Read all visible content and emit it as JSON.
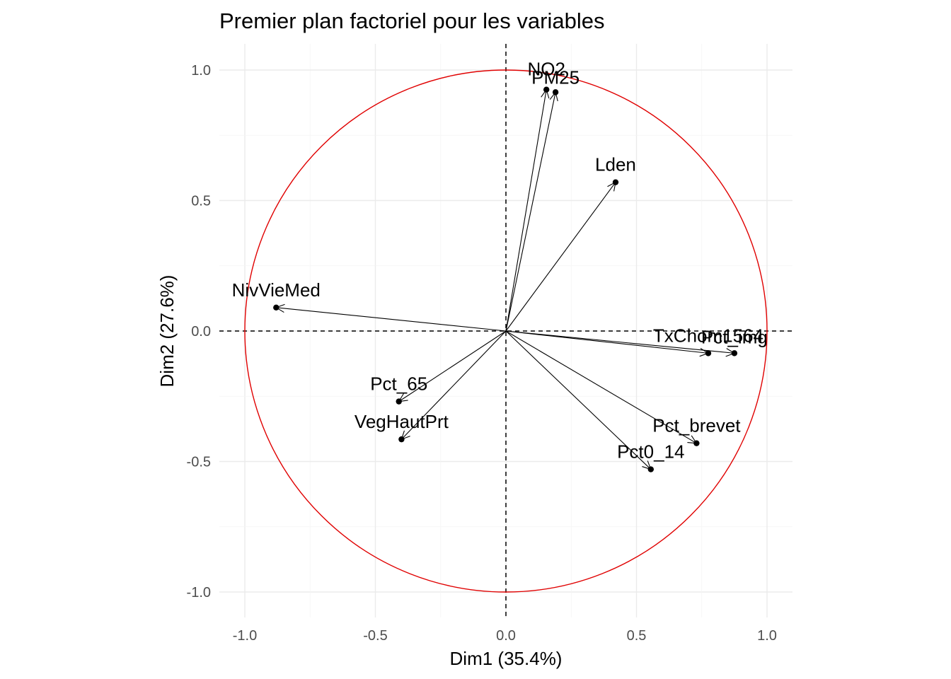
{
  "chart_data": {
    "type": "scatter",
    "subtype": "pca-correlation-circle",
    "title": "Premier plan factoriel pour les variables",
    "xlabel": "Dim1 (35.4%)",
    "ylabel": "Dim2 (27.6%)",
    "xlim": [
      -1.1,
      1.1
    ],
    "ylim": [
      -1.1,
      1.1
    ],
    "xticks": [
      -1.0,
      -0.5,
      0.0,
      0.5,
      1.0
    ],
    "xtick_labels": [
      "-1.0",
      "-0.5",
      "0.0",
      "0.5",
      "1.0"
    ],
    "yticks": [
      -1.0,
      -0.5,
      0.0,
      0.5,
      1.0
    ],
    "ytick_labels": [
      "-1.0",
      "-0.5",
      "0.0",
      "0.5",
      "1.0"
    ],
    "grid": true,
    "unit_circle": true,
    "circle_color": "#e00000",
    "arrow_color": "#000000",
    "variables": [
      {
        "name": "NO2",
        "x": 0.155,
        "y": 0.925
      },
      {
        "name": "PM25",
        "x": 0.19,
        "y": 0.915
      },
      {
        "name": "Lden",
        "x": 0.42,
        "y": 0.57
      },
      {
        "name": "NivVieMed",
        "x": -0.88,
        "y": 0.09
      },
      {
        "name": "TxChom1564",
        "x": 0.775,
        "y": -0.085
      },
      {
        "name": "Pct_img",
        "x": 0.875,
        "y": -0.085
      },
      {
        "name": "Pct_65",
        "x": -0.41,
        "y": -0.27
      },
      {
        "name": "VegHautPrt",
        "x": -0.4,
        "y": -0.415
      },
      {
        "name": "Pct_brevet",
        "x": 0.73,
        "y": -0.43
      },
      {
        "name": "Pct0_14",
        "x": 0.555,
        "y": -0.53
      }
    ]
  }
}
